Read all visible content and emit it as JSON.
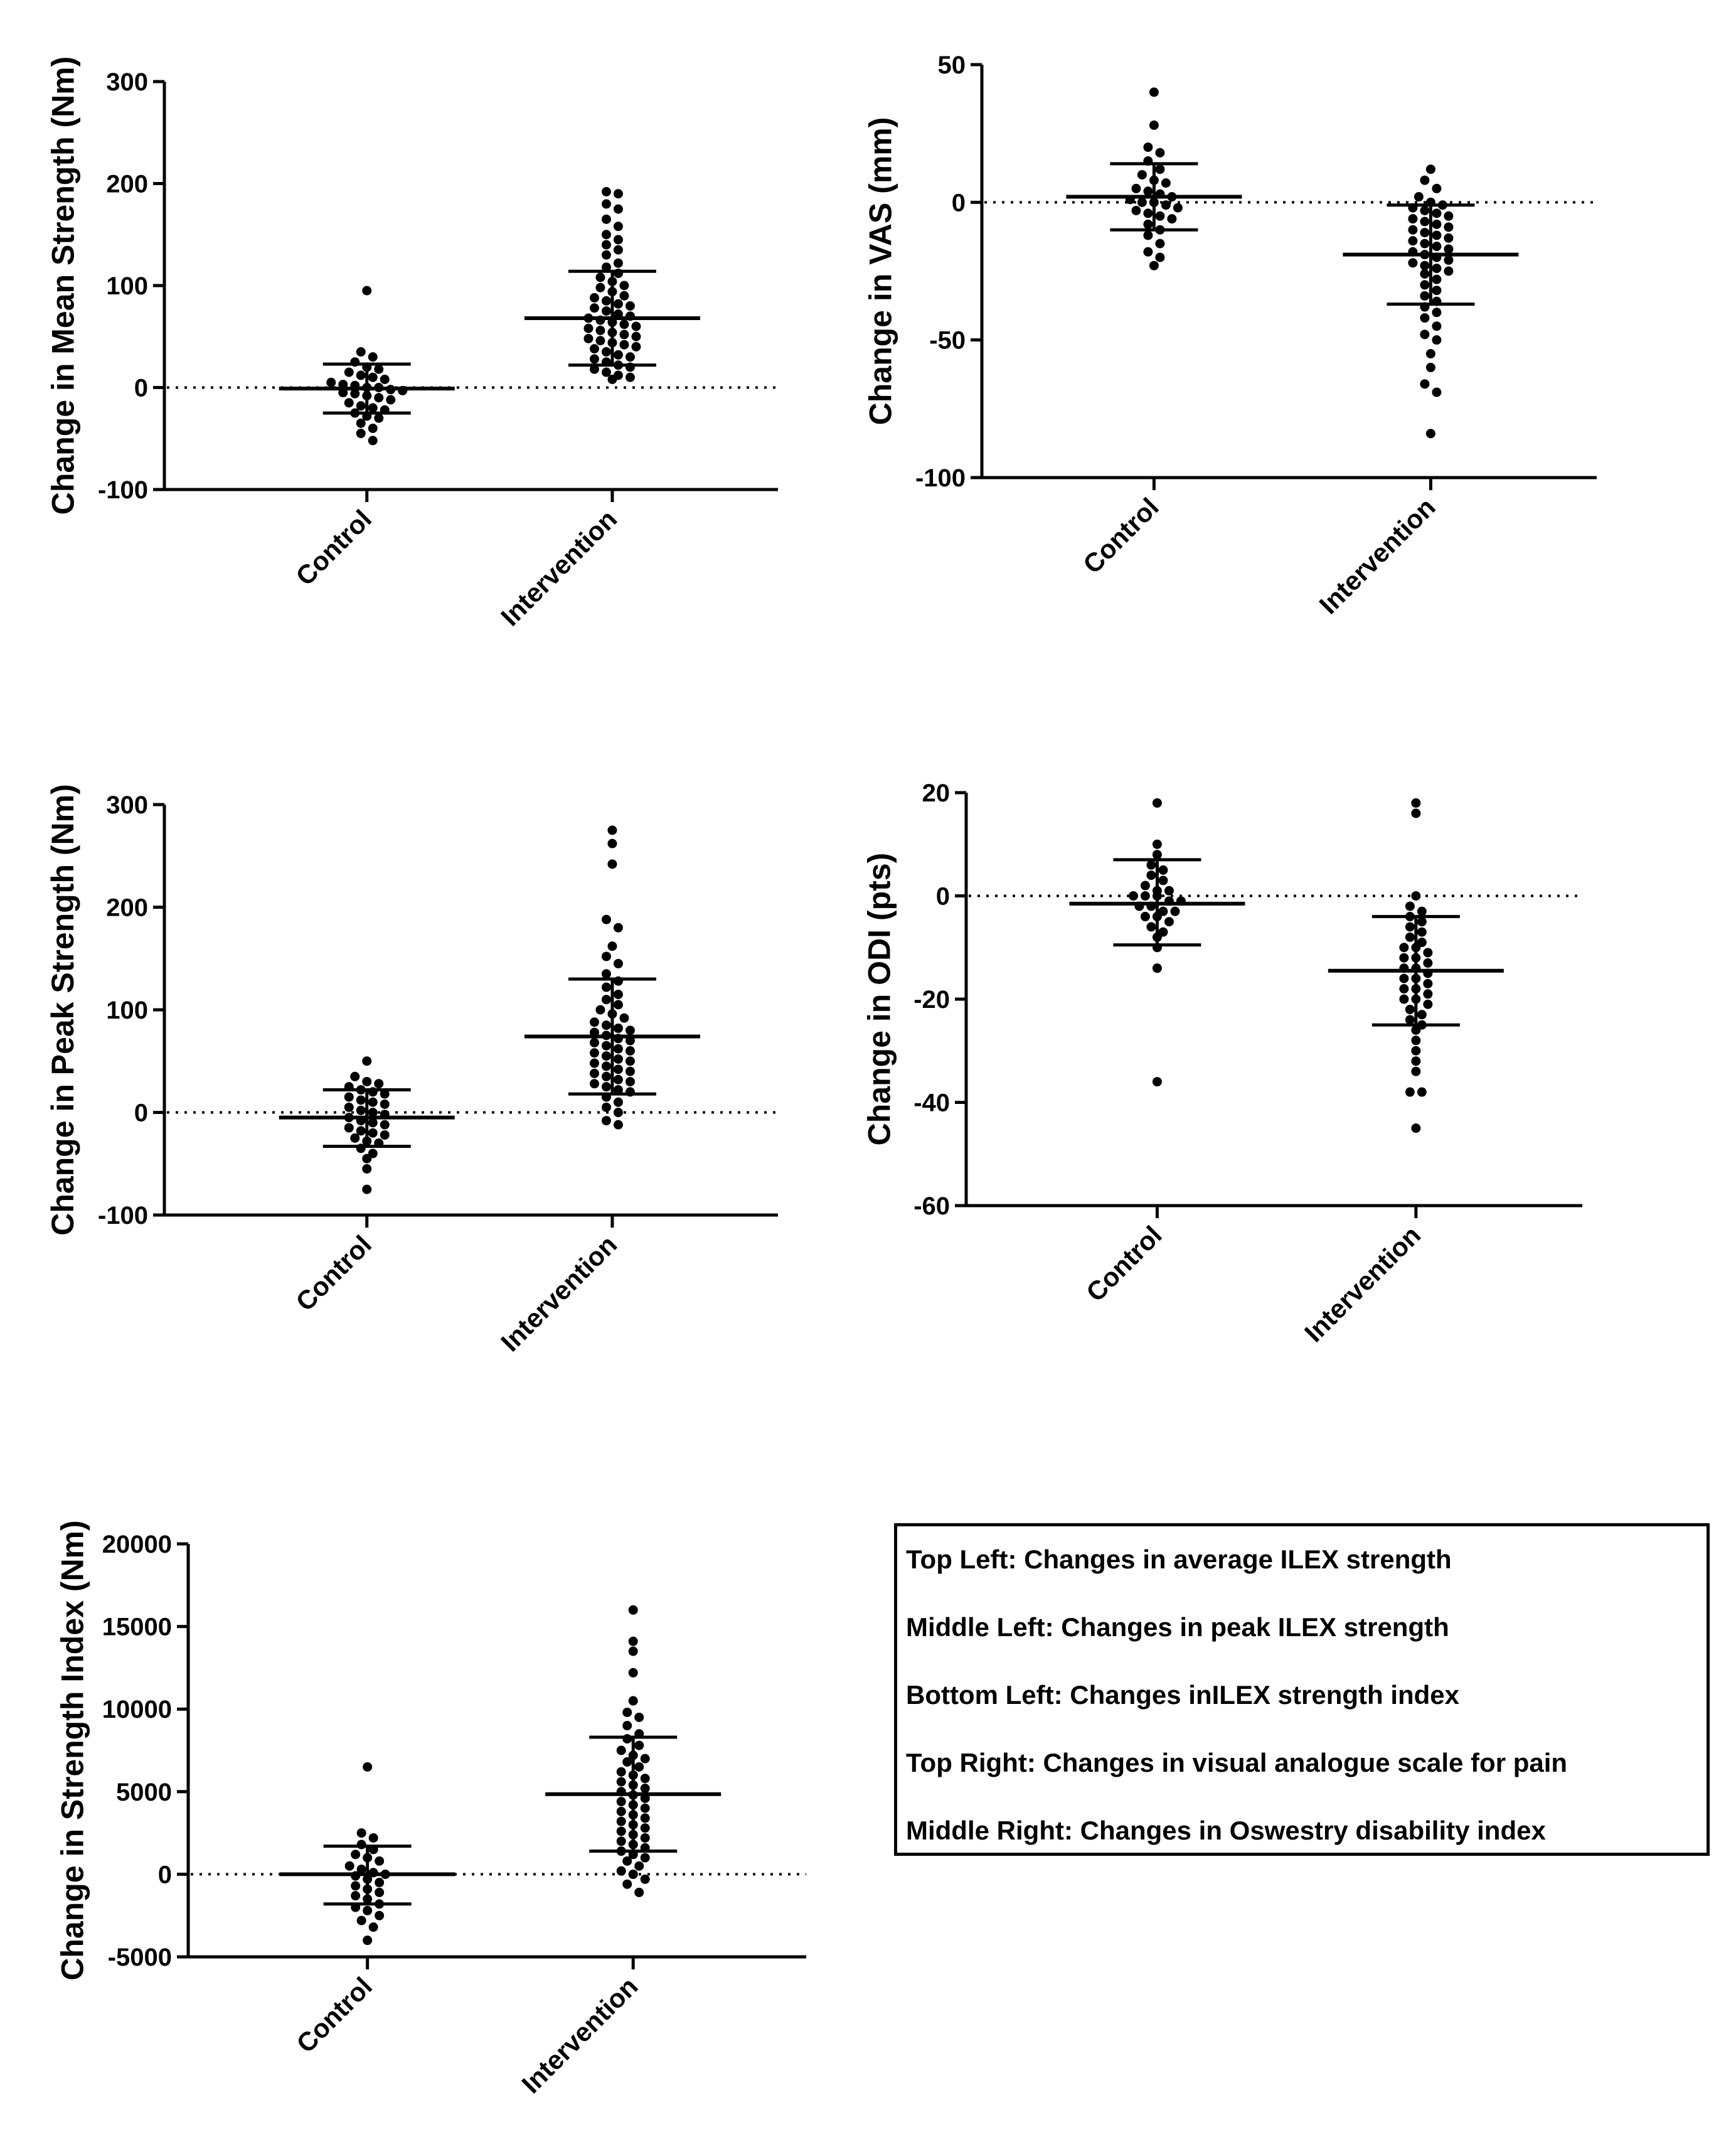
{
  "chart_data": [
    {
      "id": "top-left",
      "type": "scatter",
      "ylabel": "Change in Mean Strength (Nm)",
      "ylim": [
        -100,
        300
      ],
      "yticks": [
        300,
        200,
        100,
        0,
        -100
      ],
      "categories": [
        "Control",
        "Intervention"
      ],
      "reference_line": 0,
      "groups": [
        {
          "name": "Control",
          "mean": -1,
          "sd_upper": 23,
          "sd_lower": -25,
          "values": [
            95,
            35,
            30,
            25,
            20,
            18,
            15,
            12,
            10,
            8,
            5,
            3,
            2,
            0,
            0,
            -2,
            -3,
            -5,
            -6,
            -8,
            -10,
            -12,
            -15,
            -18,
            -20,
            -22,
            -25,
            -28,
            -30,
            -35,
            -40,
            -45,
            -52
          ]
        },
        {
          "name": "Intervention",
          "mean": 68,
          "sd_upper": 114,
          "sd_lower": 22,
          "values": [
            192,
            190,
            180,
            175,
            165,
            158,
            150,
            145,
            140,
            135,
            130,
            122,
            118,
            112,
            108,
            104,
            100,
            98,
            94,
            90,
            88,
            85,
            82,
            80,
            78,
            75,
            72,
            70,
            68,
            66,
            64,
            62,
            60,
            58,
            56,
            54,
            52,
            50,
            48,
            46,
            44,
            42,
            40,
            38,
            35,
            32,
            30,
            28,
            25,
            22,
            20,
            18,
            15,
            12,
            10,
            8
          ]
        }
      ]
    },
    {
      "id": "top-right",
      "type": "scatter",
      "ylabel": "Change in VAS (mm)",
      "ylim": [
        -100,
        50
      ],
      "yticks": [
        50,
        0,
        -50,
        -100
      ],
      "categories": [
        "Control",
        "Intervention"
      ],
      "reference_line": 0,
      "groups": [
        {
          "name": "Control",
          "mean": 2,
          "sd_upper": 14,
          "sd_lower": -10,
          "values": [
            40,
            28,
            20,
            18,
            15,
            12,
            10,
            8,
            7,
            5,
            4,
            3,
            2,
            1,
            0,
            0,
            -1,
            -2,
            -3,
            -4,
            -5,
            -6,
            -8,
            -10,
            -12,
            -15,
            -18,
            -20,
            -23
          ]
        },
        {
          "name": "Intervention",
          "mean": -19,
          "sd_upper": -1,
          "sd_lower": -37,
          "values": [
            12,
            8,
            5,
            2,
            0,
            -1,
            -2,
            -3,
            -4,
            -5,
            -6,
            -7,
            -8,
            -9,
            -10,
            -11,
            -12,
            -13,
            -14,
            -15,
            -16,
            -17,
            -18,
            -19,
            -20,
            -21,
            -22,
            -23,
            -24,
            -25,
            -26,
            -28,
            -30,
            -32,
            -34,
            -36,
            -38,
            -40,
            -42,
            -45,
            -48,
            -50,
            -55,
            -60,
            -66,
            -69,
            -84
          ]
        }
      ]
    },
    {
      "id": "middle-left",
      "type": "scatter",
      "ylabel": "Change in Peak Strength (Nm)",
      "ylim": [
        -100,
        300
      ],
      "yticks": [
        300,
        200,
        100,
        0,
        -100
      ],
      "categories": [
        "Control",
        "Intervention"
      ],
      "reference_line": 0,
      "groups": [
        {
          "name": "Control",
          "mean": -5,
          "sd_upper": 22,
          "sd_lower": -33,
          "values": [
            50,
            35,
            30,
            28,
            25,
            22,
            20,
            18,
            15,
            12,
            10,
            8,
            5,
            2,
            0,
            -2,
            -5,
            -8,
            -10,
            -12,
            -15,
            -18,
            -20,
            -22,
            -25,
            -28,
            -30,
            -35,
            -40,
            -45,
            -55,
            -75
          ]
        },
        {
          "name": "Intervention",
          "mean": 74,
          "sd_upper": 130,
          "sd_lower": 18,
          "values": [
            275,
            262,
            242,
            188,
            180,
            162,
            152,
            145,
            135,
            128,
            122,
            115,
            110,
            105,
            100,
            96,
            92,
            88,
            85,
            82,
            80,
            78,
            75,
            72,
            70,
            68,
            65,
            62,
            60,
            58,
            55,
            52,
            50,
            48,
            45,
            42,
            40,
            38,
            35,
            32,
            30,
            28,
            25,
            22,
            20,
            15,
            10,
            5,
            0,
            -8,
            -12
          ]
        }
      ]
    },
    {
      "id": "middle-right",
      "type": "scatter",
      "ylabel": "Change in ODI (pts)",
      "ylim": [
        -60,
        20
      ],
      "yticks": [
        20,
        0,
        -20,
        -40,
        -60
      ],
      "categories": [
        "Control",
        "Intervention"
      ],
      "reference_line": 0,
      "groups": [
        {
          "name": "Control",
          "mean": -1.5,
          "sd_upper": 7,
          "sd_lower": -9.5,
          "values": [
            18,
            10,
            8,
            6,
            5,
            4,
            3,
            2,
            1,
            1,
            0,
            0,
            0,
            -1,
            -1,
            -2,
            -2,
            -3,
            -3,
            -4,
            -4,
            -5,
            -6,
            -7,
            -8,
            -10,
            -14,
            -36
          ]
        },
        {
          "name": "Intervention",
          "mean": -14.5,
          "sd_upper": -4,
          "sd_lower": -25,
          "values": [
            18,
            16,
            0,
            -2,
            -3,
            -4,
            -5,
            -6,
            -7,
            -8,
            -9,
            -10,
            -10,
            -11,
            -12,
            -12,
            -13,
            -14,
            -14,
            -15,
            -16,
            -16,
            -17,
            -18,
            -18,
            -19,
            -20,
            -20,
            -21,
            -22,
            -23,
            -24,
            -25,
            -26,
            -28,
            -30,
            -32,
            -34,
            -38,
            -38,
            -45
          ]
        }
      ]
    },
    {
      "id": "bottom-left",
      "type": "scatter",
      "ylabel": "Change in Strength  Index (Nm)",
      "ylim": [
        -5000,
        20000
      ],
      "yticks": [
        20000,
        15000,
        10000,
        5000,
        0,
        -5000
      ],
      "categories": [
        "Control",
        "Intervention"
      ],
      "reference_line": 0,
      "groups": [
        {
          "name": "Control",
          "mean": 0,
          "sd_upper": 1700,
          "sd_lower": -1800,
          "values": [
            6500,
            2500,
            2200,
            1800,
            1500,
            1200,
            1000,
            800,
            500,
            300,
            100,
            0,
            -100,
            -300,
            -500,
            -700,
            -900,
            -1100,
            -1300,
            -1500,
            -1800,
            -2000,
            -2200,
            -2500,
            -2800,
            -3200,
            -4000
          ]
        },
        {
          "name": "Intervention",
          "mean": 4850,
          "sd_upper": 8300,
          "sd_lower": 1400,
          "values": [
            16000,
            14100,
            13500,
            12200,
            10500,
            9800,
            9500,
            9000,
            8500,
            8200,
            7800,
            7500,
            7200,
            7000,
            6800,
            6500,
            6200,
            6000,
            5800,
            5600,
            5400,
            5200,
            5000,
            4800,
            4600,
            4400,
            4200,
            4000,
            3800,
            3600,
            3400,
            3200,
            3000,
            2800,
            2600,
            2400,
            2200,
            2000,
            1800,
            1600,
            1400,
            1200,
            1000,
            800,
            500,
            200,
            0,
            -300,
            -600,
            -1100
          ]
        }
      ]
    }
  ],
  "legend": {
    "lines": [
      "Top Left: Changes in average ILEX strength",
      "Middle Left: Changes in peak ILEX strength",
      "Bottom Left: Changes inILEX strength index",
      "Top Right: Changes in visual analogue scale for pain",
      "Middle Right: Changes in Oswestry disability index"
    ]
  }
}
